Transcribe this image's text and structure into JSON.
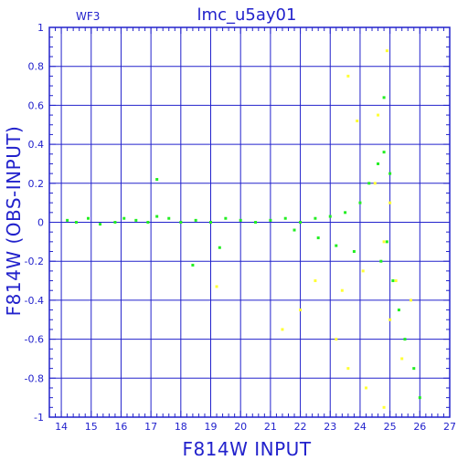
{
  "chart_data": {
    "type": "scatter",
    "title": "lmc_u5ay01",
    "panel_label": "WF3",
    "xlabel": "F814W INPUT",
    "ylabel": "F814W (OBS-INPUT)",
    "xlim": [
      13.6,
      27
    ],
    "ylim": [
      -1,
      1
    ],
    "x_ticks": [
      14,
      15,
      16,
      17,
      18,
      19,
      20,
      21,
      22,
      23,
      24,
      25,
      26,
      27
    ],
    "y_ticks": [
      -1,
      -0.8,
      -0.6,
      -0.4,
      -0.2,
      0,
      0.2,
      0.4,
      0.6,
      0.8,
      1
    ],
    "grid": true,
    "colors": {
      "frame": "#2222cc",
      "grid": "#2222cc",
      "text": "#2222cc",
      "series_green": "#22ee22",
      "series_yellow": "#ffff33"
    },
    "series": [
      {
        "color": "green",
        "points": [
          [
            14.2,
            0.01
          ],
          [
            14.5,
            0.0
          ],
          [
            14.9,
            0.02
          ],
          [
            15.3,
            -0.01
          ],
          [
            15.8,
            0.0
          ],
          [
            16.1,
            0.02
          ],
          [
            16.5,
            0.01
          ],
          [
            16.9,
            0.0
          ],
          [
            17.2,
            0.03
          ],
          [
            17.6,
            0.02
          ],
          [
            18.0,
            0.0
          ],
          [
            18.5,
            0.01
          ],
          [
            19.0,
            0.0
          ],
          [
            19.5,
            0.02
          ],
          [
            20.0,
            0.01
          ],
          [
            20.5,
            0.0
          ],
          [
            21.0,
            0.01
          ],
          [
            21.5,
            0.02
          ],
          [
            22.0,
            0.0
          ],
          [
            22.5,
            0.02
          ],
          [
            23.0,
            0.03
          ],
          [
            23.5,
            0.05
          ],
          [
            24.0,
            0.1
          ],
          [
            24.3,
            0.2
          ],
          [
            24.6,
            0.3
          ],
          [
            24.8,
            0.36
          ],
          [
            25.0,
            0.25
          ],
          [
            24.9,
            -0.1
          ],
          [
            24.7,
            -0.2
          ],
          [
            25.1,
            -0.3
          ],
          [
            25.3,
            -0.45
          ],
          [
            25.5,
            -0.6
          ],
          [
            25.8,
            -0.75
          ],
          [
            26.0,
            -0.9
          ],
          [
            23.8,
            -0.15
          ],
          [
            23.2,
            -0.12
          ],
          [
            22.6,
            -0.08
          ],
          [
            21.8,
            -0.04
          ],
          [
            17.2,
            0.22
          ],
          [
            24.8,
            0.64
          ],
          [
            18.4,
            -0.22
          ],
          [
            19.3,
            -0.13
          ]
        ]
      },
      {
        "color": "yellow",
        "points": [
          [
            23.6,
            0.75
          ],
          [
            24.9,
            0.88
          ],
          [
            23.9,
            0.52
          ],
          [
            24.6,
            0.55
          ],
          [
            24.5,
            0.2
          ],
          [
            25.0,
            0.1
          ],
          [
            24.8,
            -0.1
          ],
          [
            25.2,
            -0.3
          ],
          [
            25.0,
            -0.5
          ],
          [
            24.1,
            -0.25
          ],
          [
            23.4,
            -0.35
          ],
          [
            22.5,
            -0.3
          ],
          [
            23.2,
            -0.6
          ],
          [
            23.6,
            -0.75
          ],
          [
            24.2,
            -0.85
          ],
          [
            24.8,
            -0.95
          ],
          [
            25.4,
            -0.7
          ],
          [
            21.4,
            -0.55
          ],
          [
            19.2,
            -0.33
          ],
          [
            22.0,
            -0.45
          ],
          [
            25.7,
            -0.4
          ]
        ]
      }
    ]
  }
}
